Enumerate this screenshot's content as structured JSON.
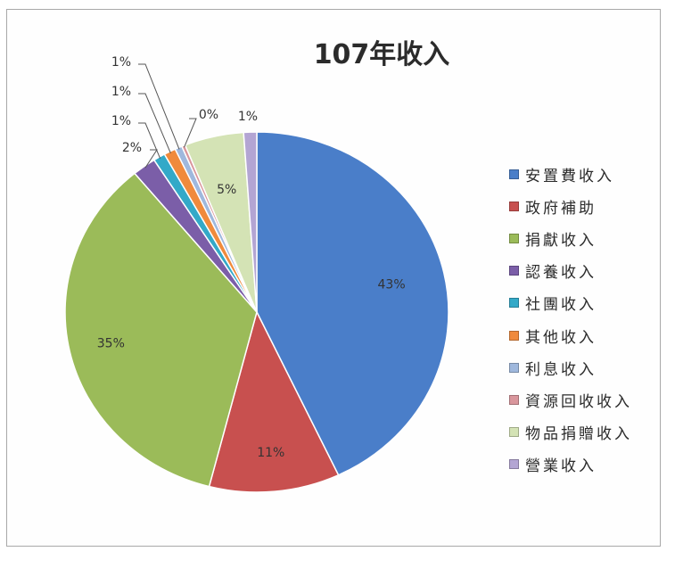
{
  "chart_data": {
    "type": "pie",
    "title": "107年收入",
    "legend_position": "right",
    "slices": [
      {
        "label": "安置費收入",
        "value": 43,
        "display": "43%",
        "color": "#4a7ec9"
      },
      {
        "label": "政府補助",
        "value": 11,
        "display": "11%",
        "color": "#c8504f"
      },
      {
        "label": "捐獻收入",
        "value": 35,
        "display": "35%",
        "color": "#9bbb59"
      },
      {
        "label": "認養收入",
        "value": 2,
        "display": "2%",
        "color": "#7b5ea8"
      },
      {
        "label": "社團收入",
        "value": 1,
        "display": "1%",
        "color": "#33a9c8"
      },
      {
        "label": "其他收入",
        "value": 1,
        "display": "1%",
        "color": "#f08a3c"
      },
      {
        "label": "利息收入",
        "value": 0.6,
        "display": "1%",
        "color": "#9fb8dd"
      },
      {
        "label": "資源回收收入",
        "value": 0.3,
        "display": "0%",
        "color": "#d9969c"
      },
      {
        "label": "物品捐贈收入",
        "value": 5,
        "display": "5%",
        "color": "#d4e3b5"
      },
      {
        "label": "營業收入",
        "value": 1.1,
        "display": "1%",
        "color": "#b3a5d3"
      }
    ]
  }
}
